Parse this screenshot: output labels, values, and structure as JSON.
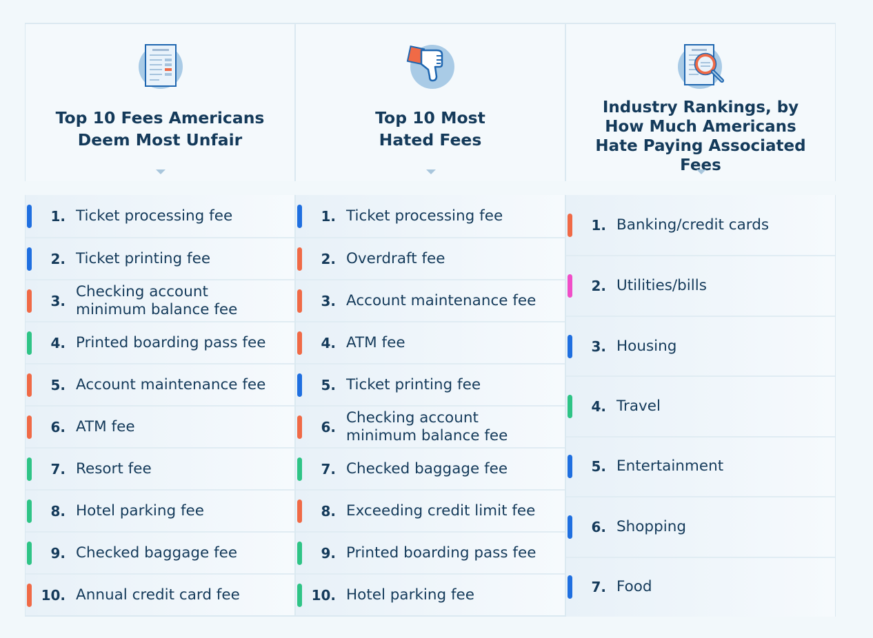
{
  "colors": {
    "blue": "#1f6fe0",
    "orange": "#f06a46",
    "green": "#2fc486",
    "pink": "#f04ec8"
  },
  "columns": [
    {
      "title": "Top 10 Fees Americans Deem Most Unfair",
      "icon": "document-icon",
      "items": [
        {
          "rank": "1.",
          "label": "Ticket processing fee",
          "color": "#1f6fe0"
        },
        {
          "rank": "2.",
          "label": "Ticket printing fee",
          "color": "#1f6fe0"
        },
        {
          "rank": "3.",
          "label": "Checking account minimum balance fee",
          "color": "#f06a46"
        },
        {
          "rank": "4.",
          "label": "Printed boarding pass fee",
          "color": "#2fc486"
        },
        {
          "rank": "5.",
          "label": "Account maintenance fee",
          "color": "#f06a46"
        },
        {
          "rank": "6.",
          "label": "ATM fee",
          "color": "#f06a46"
        },
        {
          "rank": "7.",
          "label": "Resort fee",
          "color": "#2fc486"
        },
        {
          "rank": "8.",
          "label": "Hotel parking fee",
          "color": "#2fc486"
        },
        {
          "rank": "9.",
          "label": "Checked baggage fee",
          "color": "#2fc486"
        },
        {
          "rank": "10.",
          "label": "Annual credit card fee",
          "color": "#f06a46"
        }
      ]
    },
    {
      "title": "Top 10 Most Hated Fees",
      "icon": "thumbs-down-icon",
      "items": [
        {
          "rank": "1.",
          "label": "Ticket processing fee",
          "color": "#1f6fe0"
        },
        {
          "rank": "2.",
          "label": "Overdraft fee",
          "color": "#f06a46"
        },
        {
          "rank": "3.",
          "label": "Account maintenance fee",
          "color": "#f06a46"
        },
        {
          "rank": "4.",
          "label": "ATM fee",
          "color": "#f06a46"
        },
        {
          "rank": "5.",
          "label": "Ticket printing fee",
          "color": "#1f6fe0"
        },
        {
          "rank": "6.",
          "label": "Checking account minimum balance fee",
          "color": "#f06a46"
        },
        {
          "rank": "7.",
          "label": "Checked baggage fee",
          "color": "#2fc486"
        },
        {
          "rank": "8.",
          "label": "Exceeding credit limit fee",
          "color": "#f06a46"
        },
        {
          "rank": "9.",
          "label": "Printed boarding pass fee",
          "color": "#2fc486"
        },
        {
          "rank": "10.",
          "label": "Hotel parking fee",
          "color": "#2fc486"
        }
      ]
    },
    {
      "title": "Industry Rankings, by How Much Americans Hate Paying Associated Fees",
      "icon": "magnifier-document-icon",
      "items": [
        {
          "rank": "1.",
          "label": "Banking/credit cards",
          "color": "#f06a46"
        },
        {
          "rank": "2.",
          "label": "Utilities/bills",
          "color": "#f04ec8"
        },
        {
          "rank": "3.",
          "label": "Housing",
          "color": "#1f6fe0"
        },
        {
          "rank": "4.",
          "label": "Travel",
          "color": "#2fc486"
        },
        {
          "rank": "5.",
          "label": "Entertainment",
          "color": "#1f6fe0"
        },
        {
          "rank": "6.",
          "label": "Shopping",
          "color": "#1f6fe0"
        },
        {
          "rank": "7.",
          "label": "Food",
          "color": "#1f6fe0"
        }
      ]
    }
  ]
}
